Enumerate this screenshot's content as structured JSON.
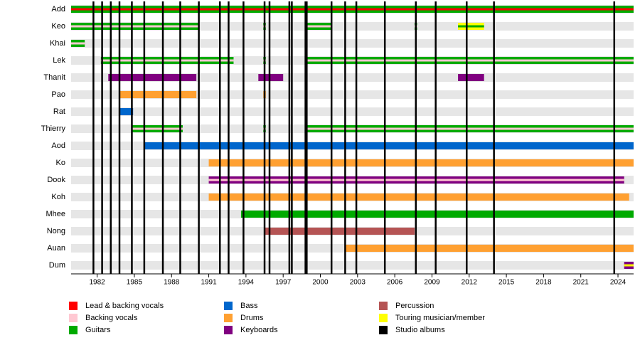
{
  "chart_data": {
    "type": "timeline",
    "xlim": [
      1979.9,
      2025.26
    ],
    "xticks": [
      1982,
      1985,
      1988,
      1991,
      1994,
      1997,
      2000,
      2003,
      2006,
      2009,
      2012,
      2015,
      2018,
      2021,
      2024
    ],
    "roles": [
      {
        "name": "Lead & backing vocals",
        "color": "#ff0000"
      },
      {
        "name": "Backing vocals",
        "color": "#ffc8d2"
      },
      {
        "name": "Guitars",
        "color": "#00aa00"
      },
      {
        "name": "Bass",
        "color": "#0066cc"
      },
      {
        "name": "Drums",
        "color": "#ffa031"
      },
      {
        "name": "Keyboards",
        "color": "#800080"
      },
      {
        "name": "Percussion",
        "color": "#b55454"
      },
      {
        "name": "Touring musician/member",
        "color": "#ffff00"
      },
      {
        "name": "Studio albums",
        "color": "#000000"
      }
    ],
    "studio_albums": [
      1981.7,
      1982.4,
      1983.1,
      1983.8,
      1984.8,
      1985.8,
      1987.3,
      1988.7,
      1990.2,
      1991.9,
      1992.6,
      1993.8,
      1995.5,
      1995.9,
      1997.5,
      1997.7,
      1998.8,
      1998.9,
      2000.9,
      2002.0,
      2002.9,
      2005.2,
      2007.7,
      2009.3,
      2011.8,
      2014.0,
      2023.7
    ],
    "members": [
      {
        "name": "Add",
        "segments": [
          {
            "start": 1979.9,
            "end": 2025.26,
            "role": "Guitars",
            "inner": "Lead & backing vocals"
          }
        ]
      },
      {
        "name": "Keo",
        "segments": [
          {
            "start": 1979.9,
            "end": 1990.2,
            "role": "Guitars",
            "inner": "Backing vocals"
          },
          {
            "start": 1995.4,
            "end": 1995.6,
            "role": "Guitars",
            "inner": "Backing vocals"
          },
          {
            "start": 1998.75,
            "end": 2000.9,
            "role": "Guitars",
            "inner": "Backing vocals"
          },
          {
            "start": 2007.6,
            "end": 2007.8,
            "role": "Guitars",
            "inner": "Backing vocals"
          },
          {
            "start": 2011.1,
            "end": 2013.2,
            "role": "Touring musician/member",
            "inner": "Guitars"
          }
        ]
      },
      {
        "name": "Khai",
        "segments": [
          {
            "start": 1979.9,
            "end": 1981.0,
            "role": "Guitars",
            "inner": "Backing vocals"
          }
        ]
      },
      {
        "name": "Lek",
        "segments": [
          {
            "start": 1982.3,
            "end": 1993.0,
            "role": "Guitars",
            "inner": "Backing vocals"
          },
          {
            "start": 1995.4,
            "end": 1995.6,
            "role": "Guitars",
            "inner": "Backing vocals"
          },
          {
            "start": 1998.75,
            "end": 2025.26,
            "role": "Guitars",
            "inner": "Backing vocals"
          }
        ]
      },
      {
        "name": "Thanit",
        "segments": [
          {
            "start": 1982.9,
            "end": 1990.0,
            "role": "Keyboards"
          },
          {
            "start": 1995.0,
            "end": 1997.0,
            "role": "Keyboards"
          },
          {
            "start": 2011.1,
            "end": 2013.2,
            "role": "Keyboards"
          }
        ]
      },
      {
        "name": "Pao",
        "segments": [
          {
            "start": 1983.8,
            "end": 1990.0,
            "role": "Drums"
          },
          {
            "start": 1995.4,
            "end": 1995.6,
            "role": "Drums"
          }
        ]
      },
      {
        "name": "Rat",
        "segments": [
          {
            "start": 1983.8,
            "end": 1984.9,
            "role": "Bass"
          }
        ]
      },
      {
        "name": "Thierry",
        "segments": [
          {
            "start": 1984.8,
            "end": 1988.9,
            "role": "Guitars",
            "inner": "Backing vocals"
          },
          {
            "start": 1995.4,
            "end": 1995.6,
            "role": "Guitars",
            "inner": "Backing vocals"
          },
          {
            "start": 1998.75,
            "end": 2025.26,
            "role": "Guitars",
            "inner": "Backing vocals"
          }
        ]
      },
      {
        "name": "Aod",
        "segments": [
          {
            "start": 1985.8,
            "end": 2025.26,
            "role": "Bass"
          }
        ]
      },
      {
        "name": "Ko",
        "segments": [
          {
            "start": 1991.0,
            "end": 2025.26,
            "role": "Drums"
          }
        ]
      },
      {
        "name": "Dook",
        "segments": [
          {
            "start": 1991.0,
            "end": 2024.5,
            "role": "Keyboards",
            "inner": "Backing vocals"
          }
        ]
      },
      {
        "name": "Koh",
        "segments": [
          {
            "start": 1991.0,
            "end": 2024.9,
            "role": "Drums"
          }
        ]
      },
      {
        "name": "Mhee",
        "segments": [
          {
            "start": 1993.6,
            "end": 2025.26,
            "role": "Guitars"
          }
        ]
      },
      {
        "name": "Nong",
        "segments": [
          {
            "start": 1995.5,
            "end": 2007.6,
            "role": "Percussion"
          }
        ]
      },
      {
        "name": "Auan",
        "segments": [
          {
            "start": 2002.0,
            "end": 2025.26,
            "role": "Drums"
          }
        ]
      },
      {
        "name": "Dum",
        "segments": [
          {
            "start": 2024.5,
            "end": 2025.26,
            "role": "Keyboards",
            "inner": "Touring musician/member"
          }
        ]
      }
    ]
  }
}
